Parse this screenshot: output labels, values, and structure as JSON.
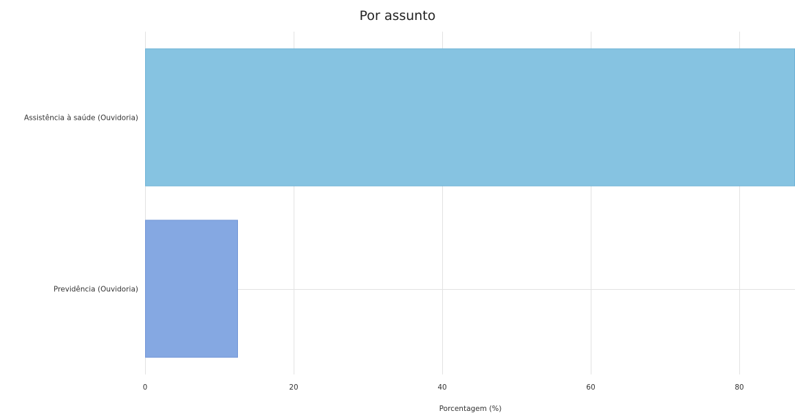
{
  "chart_data": {
    "type": "bar",
    "orientation": "horizontal",
    "title": "Por assunto",
    "xlabel": "Porcentagem (%)",
    "ylabel": "",
    "categories": [
      "Assistência à saúde (Ouvidoria)",
      "Previdência (Ouvidoria)"
    ],
    "values": [
      87.5,
      12.5
    ],
    "xlim": [
      0,
      87.5
    ],
    "xticks": [
      0,
      20,
      40,
      60,
      80
    ],
    "tick_labels": [
      "0",
      "20",
      "40",
      "60",
      "80"
    ],
    "grid": true,
    "legend": "none",
    "colors": {
      "bars": [
        "#86c3e1",
        "#85a8e2"
      ],
      "bar_borders": [
        "#6fb2d6",
        "#6f93d6"
      ],
      "grid": "#e2e2e2",
      "text": "#333333"
    }
  }
}
